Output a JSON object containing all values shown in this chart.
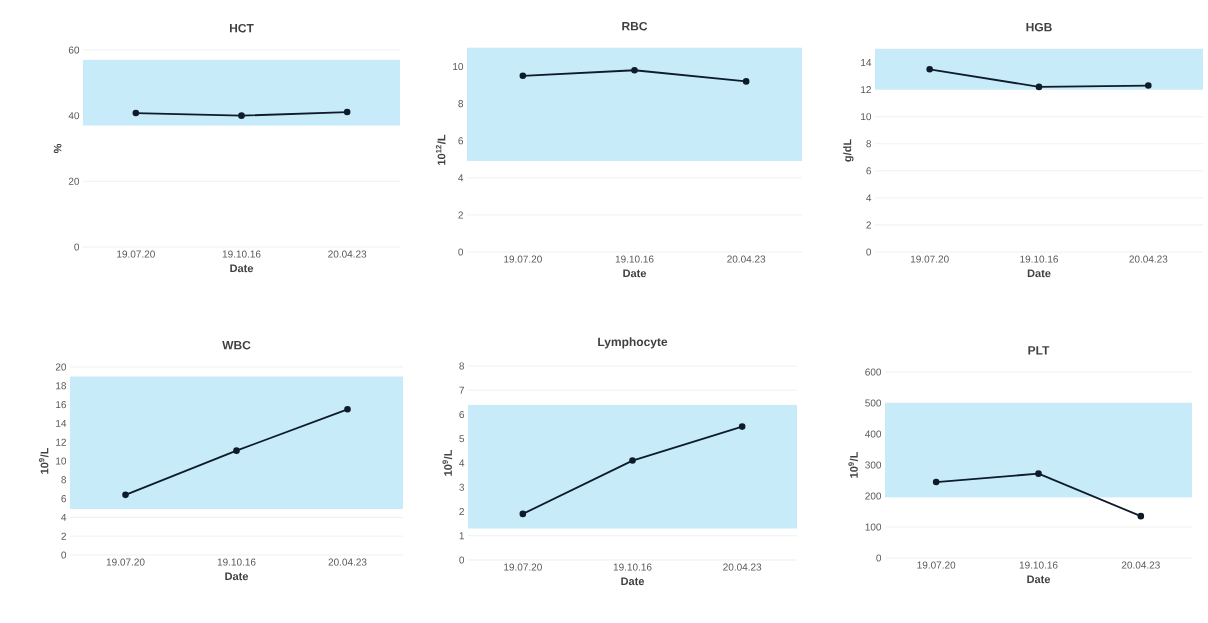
{
  "chart_data": [
    {
      "type": "line",
      "title": "HCT",
      "xlabel": "Date",
      "ylabel": "%",
      "categories": [
        "19.07.20",
        "19.10.16",
        "20.04.23"
      ],
      "series": [
        {
          "color": "#0d1b2a",
          "values": [
            40.8,
            40,
            41.1
          ]
        }
      ],
      "ylim": [
        0,
        60
      ],
      "yticks": [
        0,
        20,
        40,
        60
      ],
      "grid": "y",
      "marker": "circle",
      "bands": [
        {
          "axis": "y",
          "from": 37,
          "to": 57,
          "color": "#c8ebfa"
        }
      ]
    },
    {
      "type": "line",
      "title": "RBC",
      "xlabel": "Date",
      "ylabel": "10$^{12}$/L",
      "categories": [
        "19.07.20",
        "19.10.16",
        "20.04.23"
      ],
      "series": [
        {
          "color": "#0d1b2a",
          "values": [
            9.5,
            9.8,
            9.2
          ]
        }
      ],
      "ylim": [
        0,
        11
      ],
      "yticks": [
        0,
        2,
        4,
        6,
        8,
        10
      ],
      "grid": "y",
      "marker": "circle",
      "bands": [
        {
          "axis": "y",
          "from": 4.9,
          "to": 11,
          "color": "#c8ebfa"
        }
      ]
    },
    {
      "type": "line",
      "title": "HGB",
      "xlabel": "Date",
      "ylabel": "g/dL",
      "categories": [
        "19.07.20",
        "19.10.16",
        "20.04.23"
      ],
      "series": [
        {
          "color": "#0d1b2a",
          "values": [
            13.5,
            12.2,
            12.3
          ]
        }
      ],
      "ylim": [
        0,
        15
      ],
      "yticks": [
        0,
        2,
        4,
        6,
        8,
        10,
        12,
        14
      ],
      "grid": "y",
      "marker": "circle",
      "bands": [
        {
          "axis": "y",
          "from": 12,
          "to": 15,
          "color": "#c8ebfa"
        }
      ]
    },
    {
      "type": "line",
      "title": "WBC",
      "xlabel": "Date",
      "ylabel": "10$^{9}$/L",
      "categories": [
        "19.07.20",
        "19.10.16",
        "20.04.23"
      ],
      "series": [
        {
          "color": "#0d1b2a",
          "values": [
            6.4,
            11.1,
            15.5
          ]
        }
      ],
      "ylim": [
        0,
        20
      ],
      "yticks": [
        0,
        2,
        4,
        6,
        8,
        10,
        12,
        14,
        16,
        18,
        20
      ],
      "grid": "y",
      "marker": "circle",
      "bands": [
        {
          "axis": "y",
          "from": 4.9,
          "to": 19,
          "color": "#c8ebfa"
        }
      ]
    },
    {
      "type": "line",
      "title": "Lymphocyte",
      "xlabel": "Date",
      "ylabel": "10$^{9}$/L",
      "categories": [
        "19.07.20",
        "19.10.16",
        "20.04.23"
      ],
      "series": [
        {
          "color": "#0d1b2a",
          "values": [
            1.9,
            4.1,
            5.5
          ]
        }
      ],
      "ylim": [
        0,
        8
      ],
      "yticks": [
        0,
        1,
        2,
        3,
        4,
        5,
        6,
        7,
        8
      ],
      "grid": "y",
      "marker": "circle",
      "bands": [
        {
          "axis": "y",
          "from": 1.3,
          "to": 6.4,
          "color": "#c8ebfa"
        }
      ]
    },
    {
      "type": "line",
      "title": "PLT",
      "xlabel": "Date",
      "ylabel": "10$^{9}$/L",
      "categories": [
        "19.07.20",
        "19.10.16",
        "20.04.23"
      ],
      "series": [
        {
          "color": "#0d1b2a",
          "values": [
            245,
            272,
            135
          ]
        }
      ],
      "ylim": [
        0,
        600
      ],
      "yticks": [
        0,
        100,
        200,
        300,
        400,
        500,
        600
      ],
      "grid": "y",
      "marker": "circle",
      "bands": [
        {
          "axis": "y",
          "from": 195,
          "to": 500,
          "color": "#c8ebfa"
        }
      ]
    }
  ]
}
